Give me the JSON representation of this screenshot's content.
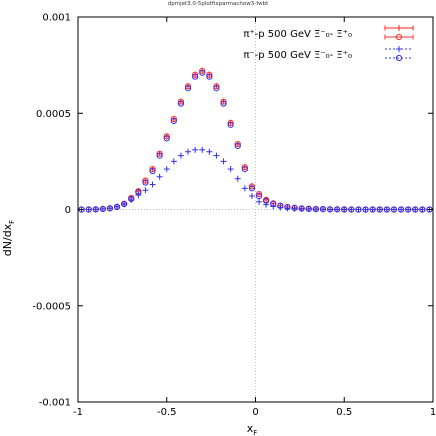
{
  "chart_data": {
    "type": "scatter",
    "title": "dpmjet3.0-5plotfixparmachow3-fwbt",
    "xlabel": "x",
    "xlabel_sub": "F",
    "ylabel": "dN/dx",
    "ylabel_sub": "F",
    "xlim": [
      -1,
      1
    ],
    "ylim": [
      -0.001,
      0.001
    ],
    "grid": false,
    "zero_reference_lines": true,
    "legend_position": "top-right",
    "x_ticks": [
      {
        "value": -1,
        "label": "-1"
      },
      {
        "value": -0.5,
        "label": "-0.5"
      },
      {
        "value": 0,
        "label": "0"
      },
      {
        "value": 0.5,
        "label": "0.5"
      },
      {
        "value": 1,
        "label": "1"
      }
    ],
    "y_ticks": [
      {
        "value": 0.001,
        "label": "0.001"
      },
      {
        "value": 0.0005,
        "label": "0.0005"
      },
      {
        "value": 0,
        "label": "0"
      },
      {
        "value": -0.0005,
        "label": "-0.0005"
      },
      {
        "value": -0.001,
        "label": "-0.001"
      }
    ],
    "legend": [
      {
        "label": "π⁺-p  500 GeV Ξ⁻₀- Ξ⁺₀",
        "series": [
          0,
          1
        ]
      },
      {
        "label": "π⁻-p  500 GeV Ξ⁻₀- Ξ⁺₀",
        "series": [
          2,
          3
        ]
      }
    ],
    "series": [
      {
        "marker": "cross",
        "color": "#ff2020",
        "x": [
          -0.98,
          -0.94,
          -0.9,
          -0.86,
          -0.82,
          -0.78,
          -0.74,
          -0.7,
          -0.66,
          -0.62,
          -0.58,
          -0.54,
          -0.5,
          -0.46,
          -0.42,
          -0.38,
          -0.34,
          -0.3,
          -0.26,
          -0.22,
          -0.18,
          -0.14,
          -0.1,
          -0.06,
          -0.02,
          0.02,
          0.06,
          0.1,
          0.14,
          0.18,
          0.22,
          0.26,
          0.3,
          0.34,
          0.38,
          0.42,
          0.46,
          0.5,
          0.54,
          0.58,
          0.62,
          0.66,
          0.7,
          0.74,
          0.78,
          0.82,
          0.86,
          0.9,
          0.94,
          0.98
        ],
        "y": [
          0,
          0,
          1e-06,
          3e-06,
          6e-06,
          1.4e-05,
          3e-05,
          6e-05,
          9.5e-05,
          0.00015,
          0.00021,
          0.00029,
          0.00038,
          0.00047,
          0.00056,
          0.00064,
          0.0007,
          0.00072,
          0.0007,
          0.00064,
          0.00056,
          0.00045,
          0.00034,
          0.00022,
          0.00012,
          8e-05,
          5e-05,
          3.2e-05,
          2e-05,
          1.3e-05,
          9e-06,
          6e-06,
          4e-06,
          3e-06,
          2e-06,
          1e-06,
          1e-06,
          1e-06,
          0,
          0,
          0,
          0,
          0,
          0,
          0,
          0,
          0,
          0,
          0,
          0
        ]
      },
      {
        "marker": "circle",
        "color": "#ff3030",
        "x": [
          -0.98,
          -0.94,
          -0.9,
          -0.86,
          -0.82,
          -0.78,
          -0.74,
          -0.7,
          -0.66,
          -0.62,
          -0.58,
          -0.54,
          -0.5,
          -0.46,
          -0.42,
          -0.38,
          -0.34,
          -0.3,
          -0.26,
          -0.22,
          -0.18,
          -0.14,
          -0.1,
          -0.06,
          -0.02,
          0.02,
          0.06,
          0.1,
          0.14,
          0.18,
          0.22,
          0.26,
          0.3,
          0.34,
          0.38,
          0.42,
          0.46,
          0.5,
          0.54,
          0.58,
          0.62,
          0.66,
          0.7,
          0.74,
          0.78,
          0.82,
          0.86,
          0.9,
          0.94,
          0.98
        ],
        "y": [
          0,
          0,
          1e-06,
          3e-06,
          6e-06,
          1.4e-05,
          3e-05,
          6e-05,
          9.5e-05,
          0.00015,
          0.00021,
          0.00029,
          0.00038,
          0.00047,
          0.00056,
          0.00064,
          0.0007,
          0.00072,
          0.0007,
          0.00064,
          0.00056,
          0.00045,
          0.00034,
          0.00022,
          0.00012,
          8e-05,
          5e-05,
          3.2e-05,
          2e-05,
          1.3e-05,
          9e-06,
          6e-06,
          4e-06,
          3e-06,
          2e-06,
          1e-06,
          1e-06,
          1e-06,
          0,
          0,
          0,
          0,
          0,
          0,
          0,
          0,
          0,
          0,
          0,
          0
        ]
      },
      {
        "marker": "cross",
        "color": "#3030ee",
        "x": [
          -0.98,
          -0.94,
          -0.9,
          -0.86,
          -0.82,
          -0.78,
          -0.74,
          -0.7,
          -0.66,
          -0.62,
          -0.58,
          -0.54,
          -0.5,
          -0.46,
          -0.42,
          -0.38,
          -0.34,
          -0.3,
          -0.26,
          -0.22,
          -0.18,
          -0.14,
          -0.1,
          -0.06,
          -0.02,
          0.02,
          0.06,
          0.1,
          0.14,
          0.18,
          0.22,
          0.26,
          0.3,
          0.34,
          0.38,
          0.42,
          0.46,
          0.5,
          0.54,
          0.58,
          0.62,
          0.66,
          0.7,
          0.74,
          0.78,
          0.82,
          0.86,
          0.9,
          0.94,
          0.98
        ],
        "y": [
          0,
          0,
          1e-06,
          3e-06,
          7e-06,
          1.5e-05,
          2.8e-05,
          5e-05,
          7.5e-05,
          0.0001,
          0.00013,
          0.00017,
          0.00021,
          0.00025,
          0.00028,
          0.0003,
          0.00031,
          0.00031,
          0.0003,
          0.00028,
          0.00025,
          0.00021,
          0.00016,
          0.00011,
          7e-05,
          4e-05,
          2.5e-05,
          1.6e-05,
          1e-05,
          6e-06,
          4e-06,
          3e-06,
          2e-06,
          1e-06,
          1e-06,
          0,
          0,
          0,
          0,
          0,
          0,
          0,
          0,
          0,
          0,
          0,
          0,
          0,
          0,
          0
        ]
      },
      {
        "marker": "circle",
        "color": "#3030ee",
        "x": [
          -0.98,
          -0.94,
          -0.9,
          -0.86,
          -0.82,
          -0.78,
          -0.74,
          -0.7,
          -0.66,
          -0.62,
          -0.58,
          -0.54,
          -0.5,
          -0.46,
          -0.42,
          -0.38,
          -0.34,
          -0.3,
          -0.26,
          -0.22,
          -0.18,
          -0.14,
          -0.1,
          -0.06,
          -0.02,
          0.02,
          0.06,
          0.1,
          0.14,
          0.18,
          0.22,
          0.26,
          0.3,
          0.34,
          0.38,
          0.42,
          0.46,
          0.5,
          0.54,
          0.58,
          0.62,
          0.66,
          0.7,
          0.74,
          0.78,
          0.82,
          0.86,
          0.9,
          0.94,
          0.98
        ],
        "y": [
          0,
          0,
          1e-06,
          3e-06,
          6e-06,
          1.3e-05,
          2.8e-05,
          5.5e-05,
          9e-05,
          0.00014,
          0.0002,
          0.00028,
          0.00037,
          0.00046,
          0.00055,
          0.00063,
          0.00069,
          0.00071,
          0.00069,
          0.00063,
          0.00055,
          0.00044,
          0.00033,
          0.00021,
          0.00011,
          7e-05,
          4.5e-05,
          3e-05,
          1.9e-05,
          1.2e-05,
          8e-06,
          5e-06,
          3e-06,
          2e-06,
          2e-06,
          1e-06,
          1e-06,
          0,
          0,
          0,
          0,
          0,
          0,
          0,
          0,
          0,
          0,
          0,
          0,
          0
        ]
      }
    ]
  }
}
